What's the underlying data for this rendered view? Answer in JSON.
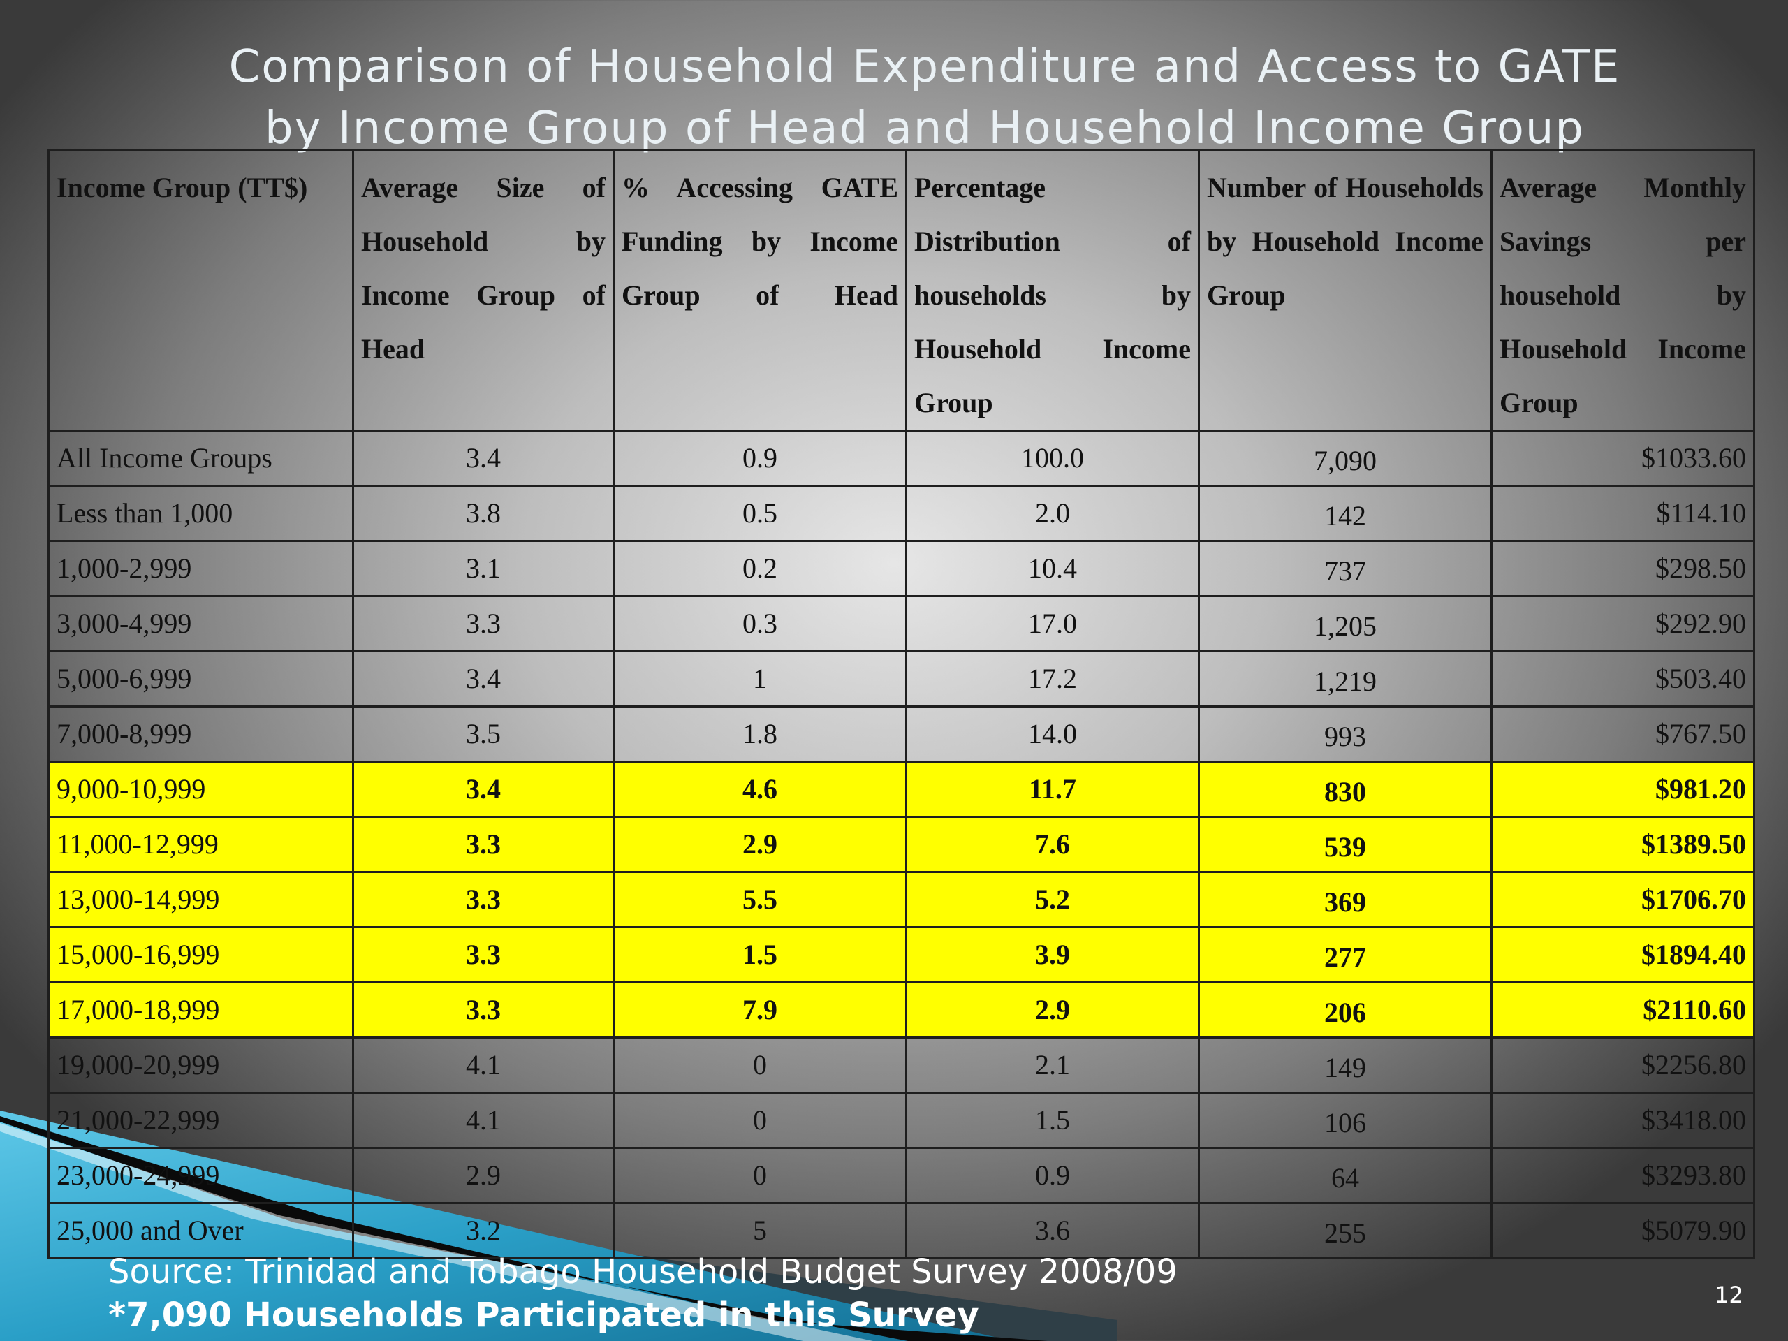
{
  "slide": {
    "title_line1": "Comparison of Household Expenditure and Access to GATE",
    "title_line2": "by Income Group of Head and Household Income Group",
    "source": "Source: Trinidad and Tobago Household Budget Survey 2008/09",
    "note": "*7,090 Households Participated in this Survey",
    "page_number": "12"
  },
  "colors": {
    "highlight": "#ffff00",
    "accent": "#29a3c9"
  },
  "table": {
    "headers": [
      "Income Group (TT$)",
      "Average Size of Household by Income Group of Head",
      "% Accessing GATE Funding by Income Group of Head",
      "Percentage Distribution of households by Household Income Group",
      "Number of Households by Household Income Group",
      "Average Monthly Savings per household by Household Income Group"
    ],
    "rows": [
      {
        "cells": [
          "All Income Groups",
          "3.4",
          "0.9",
          "100.0",
          "7,090",
          "$1033.60"
        ],
        "highlighted": false
      },
      {
        "cells": [
          "Less than 1,000",
          "3.8",
          "0.5",
          "2.0",
          "142",
          "$114.10"
        ],
        "highlighted": false
      },
      {
        "cells": [
          "1,000-2,999",
          "3.1",
          "0.2",
          "10.4",
          "737",
          "$298.50"
        ],
        "highlighted": false
      },
      {
        "cells": [
          "3,000-4,999",
          "3.3",
          "0.3",
          "17.0",
          "1,205",
          "$292.90"
        ],
        "highlighted": false
      },
      {
        "cells": [
          "5,000-6,999",
          "3.4",
          "1",
          "17.2",
          "1,219",
          "$503.40"
        ],
        "highlighted": false
      },
      {
        "cells": [
          "7,000-8,999",
          "3.5",
          "1.8",
          "14.0",
          "993",
          "$767.50"
        ],
        "highlighted": false
      },
      {
        "cells": [
          "9,000-10,999",
          "3.4",
          "4.6",
          "11.7",
          "830",
          "$981.20"
        ],
        "highlighted": true
      },
      {
        "cells": [
          "11,000-12,999",
          "3.3",
          "2.9",
          "7.6",
          "539",
          "$1389.50"
        ],
        "highlighted": true
      },
      {
        "cells": [
          "13,000-14,999",
          "3.3",
          "5.5",
          "5.2",
          "369",
          "$1706.70"
        ],
        "highlighted": true
      },
      {
        "cells": [
          "15,000-16,999",
          "3.3",
          "1.5",
          "3.9",
          "277",
          "$1894.40"
        ],
        "highlighted": true
      },
      {
        "cells": [
          "17,000-18,999",
          "3.3",
          "7.9",
          "2.9",
          "206",
          "$2110.60"
        ],
        "highlighted": true
      },
      {
        "cells": [
          "19,000-20,999",
          "4.1",
          "0",
          "2.1",
          "149",
          "$2256.80"
        ],
        "highlighted": false
      },
      {
        "cells": [
          "21,000-22,999",
          "4.1",
          "0",
          "1.5",
          "106",
          "$3418.00"
        ],
        "highlighted": false
      },
      {
        "cells": [
          "23,000-24,999",
          "2.9",
          "0",
          "0.9",
          "64",
          "$3293.80"
        ],
        "highlighted": false
      },
      {
        "cells": [
          "25,000 and Over",
          "3.2",
          "5",
          "3.6",
          "255",
          "$5079.90"
        ],
        "highlighted": false
      }
    ]
  }
}
